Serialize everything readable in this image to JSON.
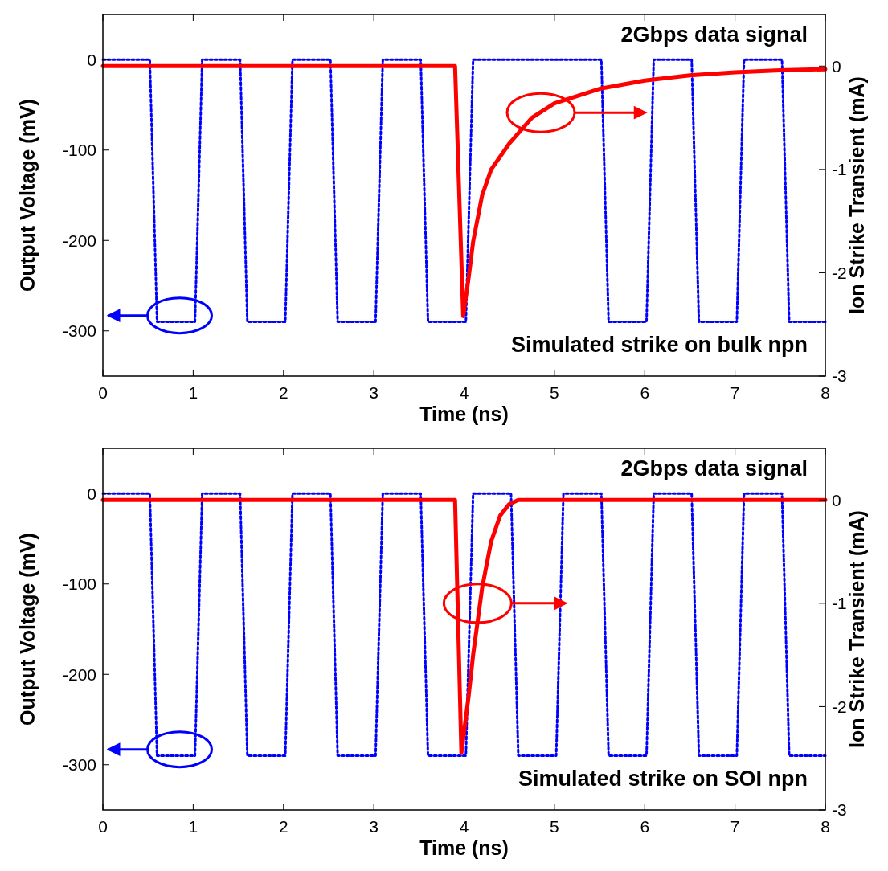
{
  "chart_data": [
    {
      "type": "line",
      "xlabel": "Time (ns)",
      "ylabel": "Output Voltage (mV)",
      "y2label": "Ion Strike Transient (mA)",
      "xlim": [
        0,
        8
      ],
      "xticks": [
        0,
        1,
        2,
        3,
        4,
        5,
        6,
        7,
        8
      ],
      "ylim": [
        -350,
        50
      ],
      "yticks": [
        -300,
        -200,
        -100,
        0
      ],
      "y2lim": [
        -3,
        0.5
      ],
      "y2ticks": [
        -3,
        -2,
        -1,
        0
      ],
      "grid": false,
      "annotations": [
        "2Gbps data signal",
        "Simulated strike on bulk npn"
      ],
      "series": [
        {
          "color": "#0000ff",
          "line_style": "dotted",
          "x": [
            0,
            0.52,
            0.6,
            1.02,
            1.1,
            1.52,
            1.6,
            2.02,
            2.1,
            2.52,
            2.6,
            3.02,
            3.1,
            3.52,
            3.6,
            4.02,
            4.1,
            5.52,
            5.6,
            6.02,
            6.1,
            6.52,
            6.6,
            7.02,
            7.1,
            7.52,
            7.6,
            8
          ],
          "values": [
            0,
            0,
            -290,
            -290,
            0,
            0,
            -290,
            -290,
            0,
            0,
            -290,
            -290,
            0,
            0,
            -290,
            -290,
            0,
            0,
            -290,
            -290,
            0,
            0,
            -290,
            -290,
            0,
            0,
            -290,
            -290
          ]
        },
        {
          "color": "#ff0000",
          "line_style": "solid",
          "axis": "y2",
          "x": [
            0,
            3.9,
            3.99,
            4.05,
            4.1,
            4.2,
            4.3,
            4.5,
            4.75,
            5,
            5.5,
            6,
            6.5,
            7,
            7.5,
            8
          ],
          "values": [
            0,
            0,
            -2.42,
            -2.05,
            -1.7,
            -1.25,
            -1.0,
            -0.75,
            -0.5,
            -0.36,
            -0.22,
            -0.14,
            -0.09,
            -0.06,
            -0.04,
            -0.03
          ]
        }
      ]
    },
    {
      "type": "line",
      "xlabel": "Time (ns)",
      "ylabel": "Output Voltage (mV)",
      "y2label": "Ion Strike Transient (mA)",
      "xlim": [
        0,
        8
      ],
      "xticks": [
        0,
        1,
        2,
        3,
        4,
        5,
        6,
        7,
        8
      ],
      "ylim": [
        -350,
        50
      ],
      "yticks": [
        -300,
        -200,
        -100,
        0
      ],
      "y2lim": [
        -3,
        0.5
      ],
      "y2ticks": [
        -3,
        -2,
        -1,
        0
      ],
      "grid": false,
      "annotations": [
        "2Gbps data signal",
        "Simulated strike on SOI npn"
      ],
      "series": [
        {
          "color": "#0000ff",
          "line_style": "dotted",
          "x": [
            0,
            0.52,
            0.6,
            1.02,
            1.1,
            1.52,
            1.6,
            2.02,
            2.1,
            2.52,
            2.6,
            3.02,
            3.1,
            3.52,
            3.6,
            4.02,
            4.1,
            4.52,
            4.6,
            5.02,
            5.1,
            5.52,
            5.6,
            6.02,
            6.1,
            6.52,
            6.6,
            7.02,
            7.1,
            7.52,
            7.6,
            8
          ],
          "values": [
            0,
            0,
            -290,
            -290,
            0,
            0,
            -290,
            -290,
            0,
            0,
            -290,
            -290,
            0,
            0,
            -290,
            -290,
            0,
            0,
            -290,
            -290,
            0,
            0,
            -290,
            -290,
            0,
            0,
            -290,
            -290,
            0,
            0,
            -290,
            -290
          ]
        },
        {
          "color": "#ff0000",
          "line_style": "solid",
          "axis": "y2",
          "x": [
            0,
            3.9,
            3.97,
            4.05,
            4.1,
            4.2,
            4.3,
            4.4,
            4.5,
            4.6,
            8
          ],
          "values": [
            0,
            0,
            -2.45,
            -1.9,
            -1.5,
            -0.85,
            -0.4,
            -0.15,
            -0.04,
            0,
            0
          ]
        }
      ]
    }
  ]
}
